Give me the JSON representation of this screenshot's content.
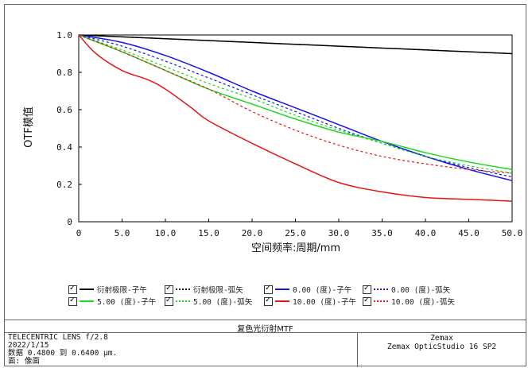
{
  "chart_data": {
    "type": "line",
    "xlabel": "空间频率:周期/mm",
    "ylabel": "OTF模值",
    "xlim": [
      0,
      50
    ],
    "ylim": [
      0,
      1
    ],
    "xticks": [
      "0",
      "5.0",
      "10.0",
      "15.0",
      "20.0",
      "25.0",
      "30.0",
      "35.0",
      "40.0",
      "45.0",
      "50.0"
    ],
    "yticks": [
      "0",
      "0.2",
      "0.4",
      "0.6",
      "0.8",
      "1.0"
    ],
    "grid": false,
    "legend_position": "bottom",
    "series": [
      {
        "name": "衍射极限-子午",
        "color": "#000000",
        "dash": false,
        "x": [
          0,
          5,
          10,
          15,
          20,
          25,
          30,
          35,
          40,
          45,
          50
        ],
        "y": [
          1.0,
          0.99,
          0.98,
          0.97,
          0.96,
          0.95,
          0.94,
          0.93,
          0.92,
          0.91,
          0.9
        ]
      },
      {
        "name": "衍射极限-弧矢",
        "color": "#000000",
        "dash": true,
        "x": [
          0,
          5,
          10,
          15,
          20,
          25,
          30,
          35,
          40,
          45,
          50
        ],
        "y": [
          1.0,
          0.99,
          0.98,
          0.97,
          0.96,
          0.95,
          0.94,
          0.93,
          0.92,
          0.91,
          0.9
        ]
      },
      {
        "name": "0.00 (度)-子午",
        "color": "#1414e6",
        "dash": false,
        "x": [
          0,
          5,
          10,
          15,
          20,
          25,
          30,
          35,
          40,
          45,
          50
        ],
        "y": [
          1.0,
          0.96,
          0.89,
          0.8,
          0.7,
          0.61,
          0.52,
          0.43,
          0.35,
          0.28,
          0.22
        ]
      },
      {
        "name": "0.00 (度)-弧矢",
        "color": "#1414e6",
        "dash": true,
        "x": [
          0,
          5,
          10,
          15,
          20,
          25,
          30,
          35,
          40,
          45,
          50
        ],
        "y": [
          1.0,
          0.94,
          0.86,
          0.77,
          0.68,
          0.59,
          0.5,
          0.42,
          0.35,
          0.29,
          0.24
        ]
      },
      {
        "name": "5.00 (度)-子午",
        "color": "#1ed81e",
        "dash": false,
        "x": [
          0,
          5,
          10,
          15,
          20,
          25,
          30,
          35,
          40,
          45,
          50
        ],
        "y": [
          1.0,
          0.91,
          0.81,
          0.71,
          0.63,
          0.55,
          0.48,
          0.43,
          0.37,
          0.32,
          0.28
        ]
      },
      {
        "name": "5.00 (度)-弧矢",
        "color": "#1ed81e",
        "dash": true,
        "x": [
          0,
          5,
          10,
          15,
          20,
          25,
          30,
          35,
          40,
          45,
          50
        ],
        "y": [
          1.0,
          0.92,
          0.83,
          0.74,
          0.66,
          0.57,
          0.49,
          0.42,
          0.35,
          0.3,
          0.26
        ]
      },
      {
        "name": "10.00 (度)-子午",
        "color": "#e61414",
        "dash": false,
        "x": [
          0,
          2,
          5,
          8,
          10,
          13,
          15,
          20,
          25,
          30,
          35,
          40,
          45,
          50
        ],
        "y": [
          1.0,
          0.9,
          0.81,
          0.76,
          0.71,
          0.61,
          0.54,
          0.42,
          0.31,
          0.21,
          0.16,
          0.13,
          0.12,
          0.11
        ]
      },
      {
        "name": "10.00 (度)-弧矢",
        "color": "#e61414",
        "dash": true,
        "x": [
          0,
          5,
          10,
          15,
          20,
          25,
          30,
          35,
          40,
          45,
          50
        ],
        "y": [
          1.0,
          0.91,
          0.81,
          0.71,
          0.59,
          0.49,
          0.41,
          0.35,
          0.31,
          0.28,
          0.26
        ]
      }
    ]
  },
  "legend": {
    "items": [
      "衍射极限-子午",
      "衍射极限-弧矢",
      "0.00 (度)-子午",
      "0.00 (度)-弧矢",
      "5.00 (度)-子午",
      "5.00 (度)-弧矢",
      "10.00 (度)-子午",
      "10.00 (度)-弧矢"
    ]
  },
  "info": {
    "title": "复色光衍射MTF",
    "lens": "TELECENTRIC LENS f/2.8",
    "date": "2022/1/15",
    "data_range": "数据 0.4800 到 0.6400 μm.",
    "surface": "面: 像面",
    "vendor": "Zemax",
    "software": "Zemax OpticStudio 16 SP2"
  }
}
